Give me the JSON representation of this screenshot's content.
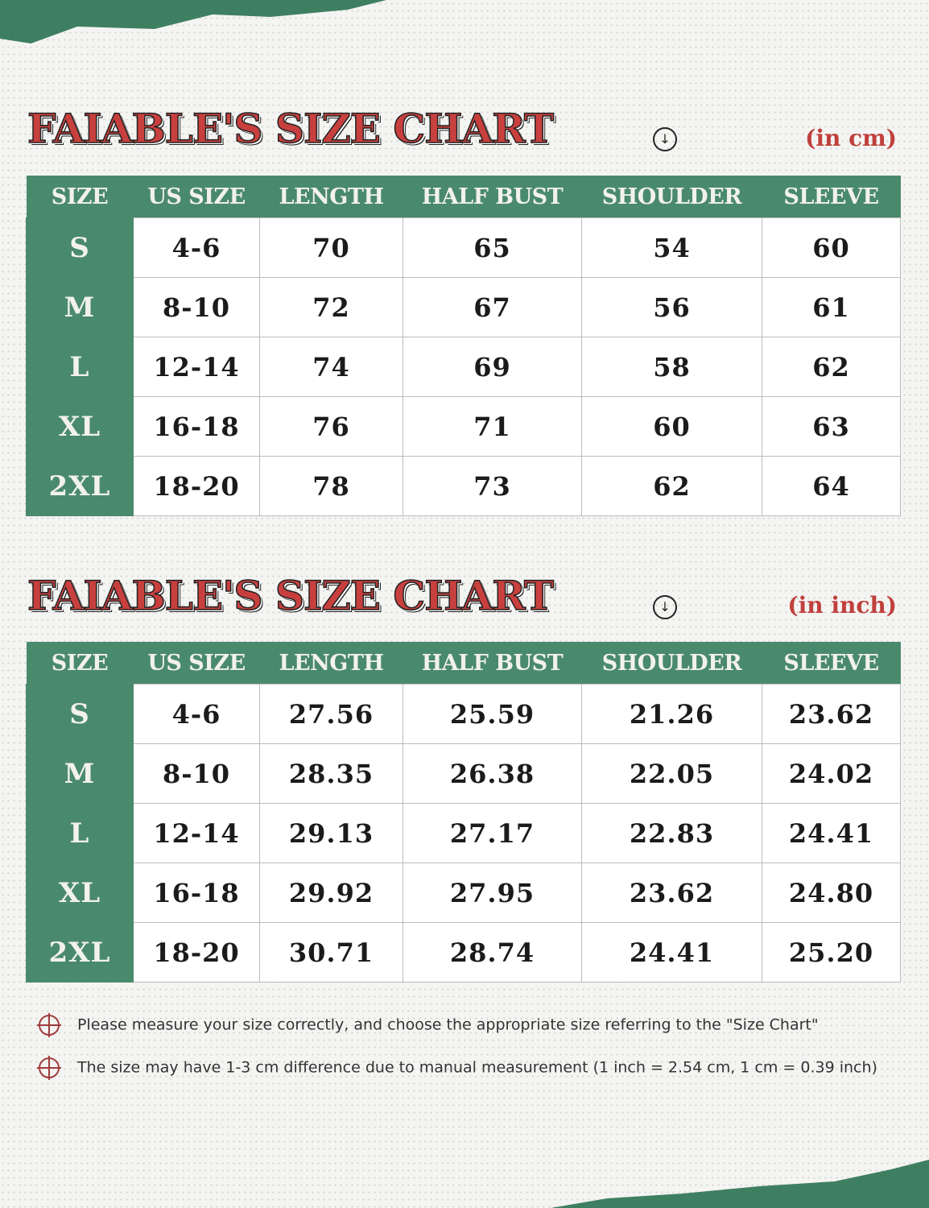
{
  "colors": {
    "green": "#4a8a6c",
    "title_red": "#c8403e"
  },
  "headers": [
    "SIZE",
    "US SIZE",
    "LENGTH",
    "HALF BUST",
    "SHOULDER",
    "SLEEVE"
  ],
  "tables": [
    {
      "title": "FAIABLE'S SIZE CHART",
      "unit": "(in cm)",
      "rows": [
        [
          "S",
          "4-6",
          "70",
          "65",
          "54",
          "60"
        ],
        [
          "M",
          "8-10",
          "72",
          "67",
          "56",
          "61"
        ],
        [
          "L",
          "12-14",
          "74",
          "69",
          "58",
          "62"
        ],
        [
          "XL",
          "16-18",
          "76",
          "71",
          "60",
          "63"
        ],
        [
          "2XL",
          "18-20",
          "78",
          "73",
          "62",
          "64"
        ]
      ]
    },
    {
      "title": "FAIABLE'S SIZE CHART",
      "unit": "(in inch)",
      "rows": [
        [
          "S",
          "4-6",
          "27.56",
          "25.59",
          "21.26",
          "23.62"
        ],
        [
          "M",
          "8-10",
          "28.35",
          "26.38",
          "22.05",
          "24.02"
        ],
        [
          "L",
          "12-14",
          "29.13",
          "27.17",
          "22.83",
          "24.41"
        ],
        [
          "XL",
          "16-18",
          "29.92",
          "27.95",
          "23.62",
          "24.80"
        ],
        [
          "2XL",
          "18-20",
          "30.71",
          "28.74",
          "24.41",
          "25.20"
        ]
      ]
    }
  ],
  "notes": [
    "Please measure your size correctly, and choose the appropriate size referring to the \"Size Chart\"",
    "The size may have 1-3 cm difference due to manual measurement (1 inch = 2.54 cm, 1 cm = 0.39 inch)"
  ],
  "icons": {
    "title_icon": "circle-arrow-down-icon",
    "note_icon": "crosshair-circle-icon"
  }
}
